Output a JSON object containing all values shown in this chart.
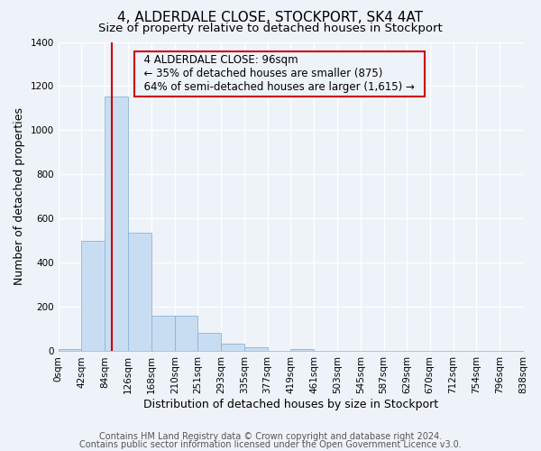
{
  "title": "4, ALDERDALE CLOSE, STOCKPORT, SK4 4AT",
  "subtitle": "Size of property relative to detached houses in Stockport",
  "xlabel": "Distribution of detached houses by size in Stockport",
  "ylabel": "Number of detached properties",
  "bin_edges": [
    0,
    42,
    84,
    126,
    168,
    210,
    251,
    293,
    335,
    377,
    419,
    461,
    503,
    545,
    587,
    629,
    670,
    712,
    754,
    796,
    838
  ],
  "bin_labels": [
    "0sqm",
    "42sqm",
    "84sqm",
    "126sqm",
    "168sqm",
    "210sqm",
    "251sqm",
    "293sqm",
    "335sqm",
    "377sqm",
    "419sqm",
    "461sqm",
    "503sqm",
    "545sqm",
    "587sqm",
    "629sqm",
    "670sqm",
    "712sqm",
    "754sqm",
    "796sqm",
    "838sqm"
  ],
  "bar_heights": [
    10,
    500,
    1155,
    535,
    160,
    160,
    85,
    35,
    20,
    0,
    10,
    0,
    0,
    0,
    0,
    0,
    0,
    0,
    0,
    0
  ],
  "bar_color": "#c9ddf2",
  "bar_edge_color": "#8ab4d9",
  "vline_x": 96,
  "vline_color": "#cc0000",
  "ylim": [
    0,
    1400
  ],
  "yticks": [
    0,
    200,
    400,
    600,
    800,
    1000,
    1200,
    1400
  ],
  "annotation_title": "4 ALDERDALE CLOSE: 96sqm",
  "annotation_line1": "← 35% of detached houses are smaller (875)",
  "annotation_line2": "64% of semi-detached houses are larger (1,615) →",
  "annotation_box_color": "#cc0000",
  "footer_line1": "Contains HM Land Registry data © Crown copyright and database right 2024.",
  "footer_line2": "Contains public sector information licensed under the Open Government Licence v3.0.",
  "bg_color": "#eef2f9",
  "plot_bg_color": "#eef2f9",
  "grid_color": "#ffffff",
  "title_fontsize": 11,
  "subtitle_fontsize": 9.5,
  "axis_label_fontsize": 9,
  "tick_fontsize": 7.5,
  "annotation_fontsize": 8.5,
  "footer_fontsize": 7
}
